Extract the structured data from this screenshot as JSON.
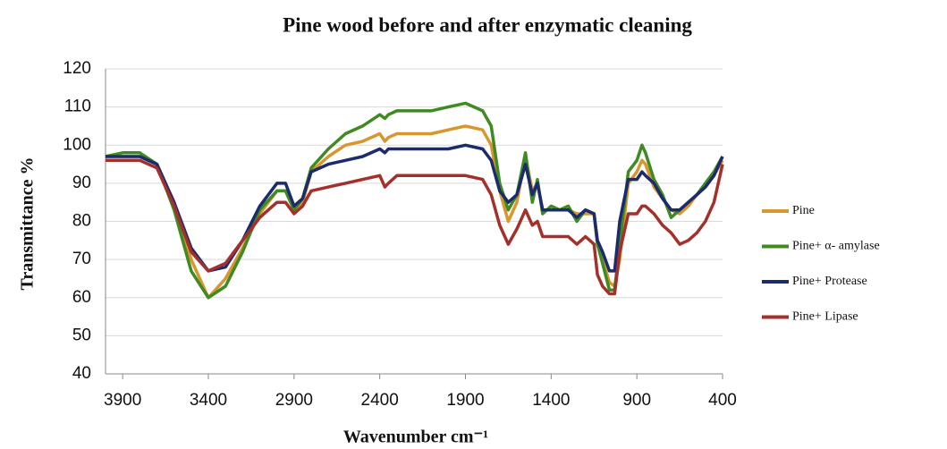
{
  "chart_data": {
    "type": "line",
    "title": "Pine wood before and after enzymatic cleaning",
    "x_label": "Wavenumber cm⁻¹",
    "y_label": "Transmittance %",
    "x": [
      4000,
      3900,
      3800,
      3700,
      3600,
      3500,
      3400,
      3300,
      3200,
      3100,
      3000,
      2950,
      2900,
      2850,
      2800,
      2700,
      2600,
      2500,
      2400,
      2370,
      2350,
      2300,
      2200,
      2100,
      2000,
      1900,
      1800,
      1750,
      1700,
      1650,
      1600,
      1550,
      1510,
      1480,
      1450,
      1400,
      1350,
      1300,
      1250,
      1200,
      1150,
      1130,
      1100,
      1060,
      1030,
      1000,
      950,
      900,
      870,
      850,
      800,
      750,
      700,
      650,
      600,
      550,
      500,
      450,
      400
    ],
    "series": [
      {
        "name": "Pine",
        "color": "#d8972e",
        "values": [
          97,
          97,
          97,
          95,
          85,
          70,
          60,
          65,
          73,
          82,
          88,
          88,
          83,
          85,
          93,
          97,
          100,
          101,
          103,
          101,
          102,
          103,
          103,
          103,
          104,
          105,
          104,
          100,
          88,
          80,
          85,
          97,
          88,
          90,
          83,
          83,
          83,
          83,
          82,
          82,
          82,
          74,
          70,
          64,
          63,
          70,
          90,
          93,
          96,
          95,
          89,
          86,
          83,
          82,
          84,
          87,
          89,
          92,
          96
        ]
      },
      {
        "name": "Pine+ α- amylase",
        "color": "#3f8a22",
        "values": [
          97,
          98,
          98,
          95,
          83,
          67,
          60,
          63,
          72,
          83,
          88,
          88,
          83,
          86,
          94,
          99,
          103,
          105,
          108,
          107,
          108,
          109,
          109,
          109,
          110,
          111,
          109,
          105,
          90,
          83,
          87,
          98,
          85,
          91,
          82,
          84,
          83,
          84,
          80,
          83,
          82,
          74,
          69,
          62,
          62,
          74,
          93,
          96,
          100,
          98,
          91,
          87,
          81,
          83,
          85,
          87,
          90,
          93,
          97
        ]
      },
      {
        "name": "Pine+ Protease",
        "color": "#1c2a6e",
        "values": [
          97,
          97,
          97,
          95,
          85,
          73,
          67,
          68,
          75,
          84,
          90,
          90,
          84,
          86,
          93,
          95,
          96,
          97,
          99,
          98,
          99,
          99,
          99,
          99,
          99,
          100,
          99,
          96,
          88,
          85,
          87,
          95,
          87,
          90,
          83,
          83,
          83,
          83,
          81,
          83,
          82,
          75,
          72,
          67,
          67,
          80,
          91,
          91,
          93,
          92,
          90,
          86,
          83,
          83,
          85,
          87,
          89,
          92,
          97
        ]
      },
      {
        "name": "Pine+ Lipase",
        "color": "#a3302b",
        "values": [
          96,
          96,
          96,
          94,
          84,
          72,
          67,
          69,
          75,
          81,
          85,
          85,
          82,
          84,
          88,
          89,
          90,
          91,
          92,
          89,
          90,
          92,
          92,
          92,
          92,
          92,
          91,
          87,
          79,
          74,
          78,
          83,
          79,
          80,
          76,
          76,
          76,
          76,
          74,
          76,
          74,
          66,
          63,
          61,
          61,
          72,
          82,
          82,
          84,
          84,
          82,
          79,
          77,
          74,
          75,
          77,
          80,
          85,
          95
        ]
      }
    ],
    "xlim": [
      4000,
      400
    ],
    "xticks": [
      3900,
      3400,
      2900,
      2400,
      1900,
      1400,
      900,
      400
    ],
    "ylim": [
      40,
      120
    ],
    "yticks": [
      40,
      50,
      60,
      70,
      80,
      90,
      100,
      110,
      120
    ],
    "grid": true,
    "legend": "right"
  }
}
